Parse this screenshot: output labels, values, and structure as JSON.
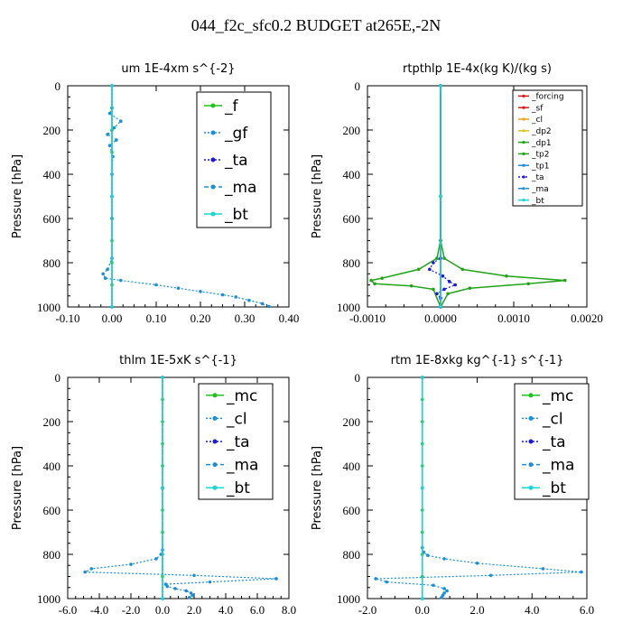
{
  "page_title": "044_f2c_sfc0.2  BUDGET at265E,-2N",
  "chart_data": [
    {
      "type": "line",
      "title": "um   1E-4xm s^{-2}",
      "ylabel": "Pressure [hPa]",
      "xlim": [
        -0.1,
        0.4
      ],
      "ylim": [
        1000,
        0
      ],
      "x_ticks": [
        "-0.10",
        "0.00",
        "0.10",
        "0.20",
        "0.30",
        "0.40"
      ],
      "x_tick_values": [
        -0.1,
        0.0,
        0.1,
        0.2,
        0.3,
        0.4
      ],
      "y_ticks": [
        "0",
        "200",
        "400",
        "600",
        "800",
        "1000"
      ],
      "y_tick_values": [
        0,
        200,
        400,
        600,
        800,
        1000
      ],
      "legend_size": "large",
      "series": [
        {
          "name": "_f",
          "color": "#22c31a",
          "style": "solid",
          "points": [
            [
              0,
              0
            ],
            [
              0,
              100
            ],
            [
              0,
              200
            ],
            [
              0,
              300
            ],
            [
              0,
              400
            ],
            [
              0,
              500
            ],
            [
              0,
              600
            ],
            [
              0,
              700
            ],
            [
              0,
              800
            ],
            [
              0,
              900
            ],
            [
              0,
              1000
            ]
          ]
        },
        {
          "name": "_gf",
          "color": "#1a8fd6",
          "style": "dotted",
          "points": [
            [
              0,
              0
            ],
            [
              0,
              100
            ],
            [
              -0.005,
              125
            ],
            [
              0.02,
              160
            ],
            [
              0.005,
              190
            ],
            [
              -0.01,
              220
            ],
            [
              0.01,
              245
            ],
            [
              -0.005,
              270
            ],
            [
              0.002,
              320
            ],
            [
              0,
              400
            ],
            [
              0,
              600
            ],
            [
              0,
              780
            ],
            [
              -0.01,
              830
            ],
            [
              -0.02,
              850
            ],
            [
              -0.015,
              870
            ],
            [
              0.02,
              880
            ],
            [
              0.1,
              900
            ],
            [
              0.15,
              915
            ],
            [
              0.2,
              930
            ],
            [
              0.25,
              945
            ],
            [
              0.28,
              955
            ],
            [
              0.31,
              970
            ],
            [
              0.34,
              985
            ],
            [
              0.355,
              998
            ]
          ]
        },
        {
          "name": "_ta",
          "color": "#1a1ad6",
          "style": "dotted",
          "points": [
            [
              0,
              0
            ],
            [
              0,
              500
            ],
            [
              0,
              1000
            ]
          ]
        },
        {
          "name": "_ma",
          "color": "#1a8fd6",
          "style": "dashed",
          "points": [
            [
              0,
              0
            ],
            [
              0,
              500
            ],
            [
              0,
              1000
            ]
          ]
        },
        {
          "name": "_bt",
          "color": "#1ad6d6",
          "style": "solid",
          "points": [
            [
              0,
              0
            ],
            [
              0,
              500
            ],
            [
              0,
              1000
            ]
          ]
        }
      ]
    },
    {
      "type": "line",
      "title": "rtpthlp   1E-4x(kg K)/(kg s)",
      "ylabel": "Pressure [hPa]",
      "xlim": [
        -0.001,
        0.002
      ],
      "ylim": [
        1000,
        0
      ],
      "x_ticks": [
        "-0.0010",
        "0.0000",
        "0.0010",
        "0.0020"
      ],
      "x_tick_values": [
        -0.001,
        0.0,
        0.001,
        0.002
      ],
      "y_ticks": [
        "0",
        "200",
        "400",
        "600",
        "800",
        "1000"
      ],
      "y_tick_values": [
        0,
        200,
        400,
        600,
        800,
        1000
      ],
      "legend_size": "small",
      "series": [
        {
          "name": "_forcing",
          "color": "#d61a1a",
          "style": "solid",
          "points": [
            [
              0,
              0
            ],
            [
              0,
              500
            ],
            [
              0,
              1000
            ]
          ]
        },
        {
          "name": "_sf",
          "color": "#d61a1a",
          "style": "solid",
          "points": [
            [
              0,
              0
            ],
            [
              0,
              500
            ],
            [
              0,
              1000
            ]
          ]
        },
        {
          "name": "_cl",
          "color": "#f0a020",
          "style": "solid",
          "points": [
            [
              0,
              0
            ],
            [
              0,
              500
            ],
            [
              0,
              1000
            ]
          ]
        },
        {
          "name": "_dp2",
          "color": "#d6c61a",
          "style": "solid",
          "points": [
            [
              0,
              0
            ],
            [
              0,
              500
            ],
            [
              0,
              1000
            ]
          ]
        },
        {
          "name": "_dp1",
          "color": "#22a31a",
          "style": "solid",
          "points": [
            [
              0,
              0
            ],
            [
              0,
              700
            ],
            [
              -5e-05,
              780
            ],
            [
              -0.0003,
              830
            ],
            [
              -0.0008,
              870
            ],
            [
              -0.00095,
              880
            ],
            [
              -0.0009,
              895
            ],
            [
              -0.0004,
              905
            ],
            [
              -0.0001,
              920
            ],
            [
              0,
              1000
            ]
          ]
        },
        {
          "name": "_tp2",
          "color": "#22a31a",
          "style": "solid",
          "points": [
            [
              0,
              0
            ],
            [
              0,
              700
            ],
            [
              5e-05,
              780
            ],
            [
              0.0003,
              830
            ],
            [
              0.0009,
              860
            ],
            [
              0.0017,
              880
            ],
            [
              0.0012,
              895
            ],
            [
              0.0004,
              915
            ],
            [
              0.0001,
              940
            ],
            [
              0,
              1000
            ]
          ]
        },
        {
          "name": "_tp1",
          "color": "#1a8fd6",
          "style": "solid",
          "points": [
            [
              0,
              0
            ],
            [
              0,
              500
            ],
            [
              0,
              1000
            ]
          ]
        },
        {
          "name": "_ta",
          "color": "#1a1ad6",
          "style": "dotted",
          "points": [
            [
              0,
              0
            ],
            [
              0,
              780
            ],
            [
              -0.0001,
              800
            ],
            [
              -0.00015,
              830
            ],
            [
              3e-05,
              860
            ],
            [
              0.00012,
              885
            ],
            [
              0.0002,
              900
            ],
            [
              5e-05,
              920
            ],
            [
              -5e-05,
              940
            ],
            [
              0,
              960
            ],
            [
              0,
              1000
            ]
          ]
        },
        {
          "name": "_ma",
          "color": "#1a8fd6",
          "style": "dashed",
          "points": [
            [
              0,
              0
            ],
            [
              0,
              500
            ],
            [
              0,
              1000
            ]
          ]
        },
        {
          "name": "_bt",
          "color": "#1ad6d6",
          "style": "solid",
          "points": [
            [
              0,
              0
            ],
            [
              0,
              500
            ],
            [
              0,
              1000
            ]
          ]
        }
      ]
    },
    {
      "type": "line",
      "title": "thlm   1E-5xK  s^{-1}",
      "ylabel": "Pressure [hPa]",
      "xlim": [
        -6.0,
        8.0
      ],
      "ylim": [
        1000,
        0
      ],
      "x_ticks": [
        "-6.0",
        "-4.0",
        "-2.0",
        "0.0",
        "2.0",
        "4.0",
        "6.0",
        "8.0"
      ],
      "x_tick_values": [
        -6,
        -4,
        -2,
        0,
        2,
        4,
        6,
        8
      ],
      "y_ticks": [
        "0",
        "200",
        "400",
        "600",
        "800",
        "1000"
      ],
      "y_tick_values": [
        0,
        200,
        400,
        600,
        800,
        1000
      ],
      "legend_size": "large",
      "series": [
        {
          "name": "_mc",
          "color": "#22c31a",
          "style": "solid",
          "points": [
            [
              0,
              0
            ],
            [
              0,
              100
            ],
            [
              0,
              200
            ],
            [
              0,
              300
            ],
            [
              0,
              400
            ],
            [
              0,
              500
            ],
            [
              0,
              600
            ],
            [
              0,
              700
            ],
            [
              0,
              800
            ],
            [
              0,
              900
            ],
            [
              0,
              1000
            ]
          ]
        },
        {
          "name": "_cl",
          "color": "#1a8fd6",
          "style": "dotted",
          "points": [
            [
              0,
              0
            ],
            [
              0,
              780
            ],
            [
              -0.1,
              800
            ],
            [
              -0.4,
              820
            ],
            [
              -2.0,
              845
            ],
            [
              -4.5,
              865
            ],
            [
              -4.9,
              880
            ],
            [
              2.0,
              895
            ],
            [
              7.2,
              910
            ],
            [
              3.0,
              925
            ],
            [
              0.2,
              935
            ],
            [
              0.3,
              945
            ],
            [
              0.8,
              955
            ],
            [
              1.5,
              965
            ],
            [
              1.8,
              975
            ],
            [
              1.9,
              985
            ],
            [
              1.7,
              995
            ]
          ]
        },
        {
          "name": "_ta",
          "color": "#1a1ad6",
          "style": "dotted",
          "points": [
            [
              0,
              0
            ],
            [
              0,
              500
            ],
            [
              0,
              1000
            ]
          ]
        },
        {
          "name": "_ma",
          "color": "#1a8fd6",
          "style": "dashed",
          "points": [
            [
              0,
              0
            ],
            [
              0,
              500
            ],
            [
              0,
              1000
            ]
          ]
        },
        {
          "name": "_bt",
          "color": "#1ad6d6",
          "style": "solid",
          "points": [
            [
              0,
              0
            ],
            [
              0,
              500
            ],
            [
              0,
              1000
            ]
          ]
        }
      ]
    },
    {
      "type": "line",
      "title": "rtm   1E-8xkg  kg^{-1} s^{-1}",
      "ylabel": "Pressure [hPa]",
      "xlim": [
        -2.0,
        6.0
      ],
      "ylim": [
        1000,
        0
      ],
      "x_ticks": [
        "-2.0",
        "0.0",
        "2.0",
        "4.0",
        "6.0"
      ],
      "x_tick_values": [
        -2,
        0,
        2,
        4,
        6
      ],
      "y_ticks": [
        "0",
        "200",
        "400",
        "600",
        "800",
        "1000"
      ],
      "y_tick_values": [
        0,
        200,
        400,
        600,
        800,
        1000
      ],
      "legend_size": "large",
      "series": [
        {
          "name": "_mc",
          "color": "#22c31a",
          "style": "solid",
          "points": [
            [
              0,
              0
            ],
            [
              0,
              100
            ],
            [
              0,
              200
            ],
            [
              0,
              300
            ],
            [
              0,
              400
            ],
            [
              0,
              500
            ],
            [
              0,
              600
            ],
            [
              0,
              700
            ],
            [
              0,
              800
            ],
            [
              0,
              900
            ],
            [
              0,
              1000
            ]
          ]
        },
        {
          "name": "_cl",
          "color": "#1a8fd6",
          "style": "dotted",
          "points": [
            [
              0,
              0
            ],
            [
              0,
              770
            ],
            [
              0.05,
              790
            ],
            [
              0.2,
              805
            ],
            [
              0.8,
              820
            ],
            [
              2.0,
              840
            ],
            [
              4.4,
              865
            ],
            [
              5.8,
              880
            ],
            [
              2.5,
              895
            ],
            [
              -1.7,
              910
            ],
            [
              -1.3,
              925
            ],
            [
              0.4,
              940
            ],
            [
              0.8,
              955
            ],
            [
              0.9,
              965
            ],
            [
              0.8,
              975
            ],
            [
              0.75,
              985
            ],
            [
              0.7,
              995
            ]
          ]
        },
        {
          "name": "_ta",
          "color": "#1a1ad6",
          "style": "dotted",
          "points": [
            [
              0,
              0
            ],
            [
              0,
              500
            ],
            [
              0,
              1000
            ]
          ]
        },
        {
          "name": "_ma",
          "color": "#1a8fd6",
          "style": "dashed",
          "points": [
            [
              0,
              0
            ],
            [
              0,
              500
            ],
            [
              0,
              1000
            ]
          ]
        },
        {
          "name": "_bt",
          "color": "#1ad6d6",
          "style": "solid",
          "points": [
            [
              0,
              0
            ],
            [
              0,
              500
            ],
            [
              0,
              1000
            ]
          ]
        }
      ]
    }
  ]
}
